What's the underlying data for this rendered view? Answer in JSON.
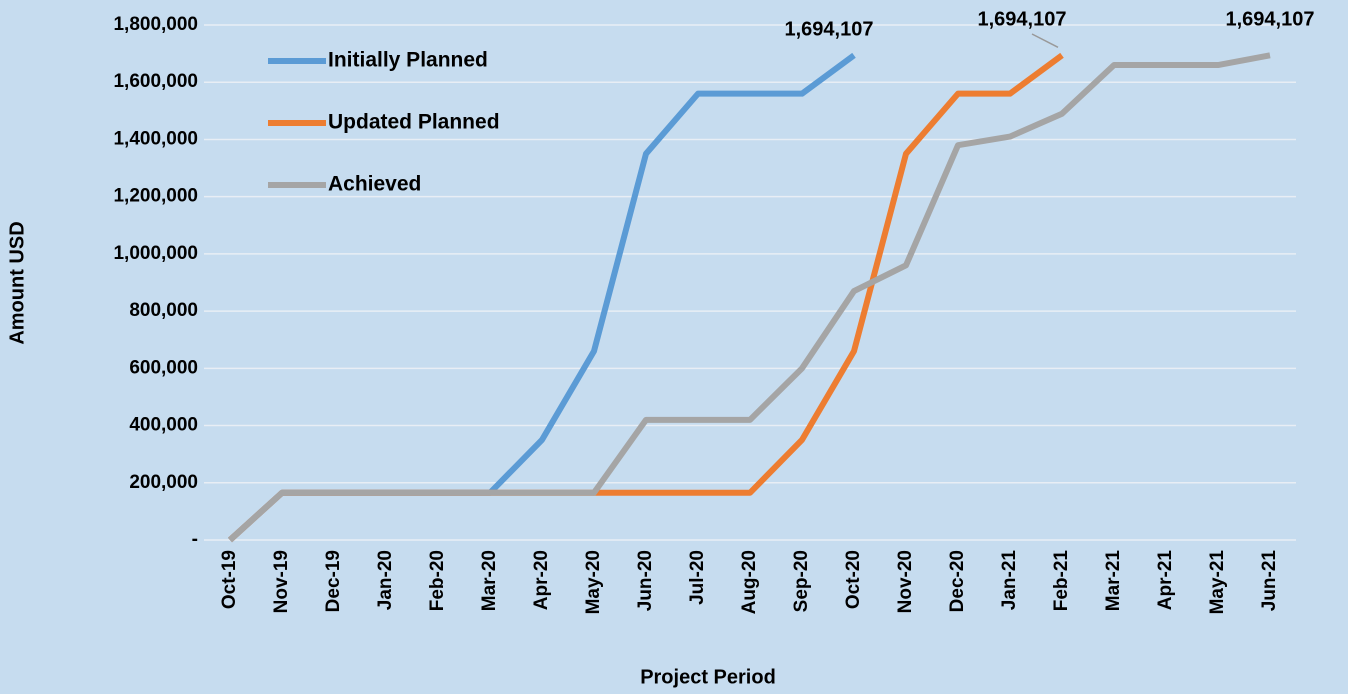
{
  "chart_data": {
    "type": "line",
    "x_label": "Project Period",
    "y_label": "Amount USD",
    "categories": [
      "Oct-19",
      "Nov-19",
      "Dec-19",
      "Jan-20",
      "Feb-20",
      "Mar-20",
      "Apr-20",
      "May-20",
      "Jun-20",
      "Jul-20",
      "Aug-20",
      "Sep-20",
      "Oct-20",
      "Nov-20",
      "Dec-20",
      "Jan-21",
      "Feb-21",
      "Mar-21",
      "Apr-21",
      "May-21",
      "Jun-21"
    ],
    "series": [
      {
        "name": "Initially Planned",
        "color": "#5b9bd5",
        "values": [
          0,
          165000,
          165000,
          165000,
          165000,
          165000,
          350000,
          660000,
          1350000,
          1560000,
          1560000,
          1560000,
          1694107,
          null,
          null,
          null,
          null,
          null,
          null,
          null,
          null
        ],
        "value_labels": [
          null,
          null,
          null,
          null,
          null,
          null,
          null,
          null,
          null,
          null,
          null,
          null,
          "1,694,107",
          null,
          null,
          null,
          null,
          null,
          null,
          null,
          null
        ]
      },
      {
        "name": "Updated Planned",
        "color": "#ed7d31",
        "values": [
          0,
          165000,
          165000,
          165000,
          165000,
          165000,
          165000,
          165000,
          165000,
          165000,
          165000,
          350000,
          660000,
          1350000,
          1560000,
          1560000,
          1694107,
          null,
          null,
          null,
          null
        ],
        "value_labels": [
          null,
          null,
          null,
          null,
          null,
          null,
          null,
          null,
          null,
          null,
          null,
          null,
          null,
          null,
          null,
          null,
          "1,694,107",
          null,
          null,
          null,
          null
        ]
      },
      {
        "name": "Achieved",
        "color": "#a5a5a5",
        "values": [
          0,
          165000,
          165000,
          165000,
          165000,
          165000,
          165000,
          165000,
          420000,
          420000,
          420000,
          600000,
          870000,
          960000,
          1380000,
          1410000,
          1490000,
          1660000,
          1660000,
          1660000,
          1694107
        ],
        "value_labels": [
          null,
          null,
          null,
          null,
          null,
          null,
          null,
          null,
          null,
          null,
          null,
          null,
          null,
          null,
          null,
          null,
          null,
          null,
          null,
          null,
          "1,694,107"
        ]
      }
    ],
    "ylim": [
      0,
      1800000
    ],
    "yticks": [
      {
        "value": 0,
        "label": "-"
      },
      {
        "value": 200000,
        "label": "200,000"
      },
      {
        "value": 400000,
        "label": "400,000"
      },
      {
        "value": 600000,
        "label": "600,000"
      },
      {
        "value": 800000,
        "label": "800,000"
      },
      {
        "value": 1000000,
        "label": "1,000,000"
      },
      {
        "value": 1200000,
        "label": "1,200,000"
      },
      {
        "value": 1400000,
        "label": "1,400,000"
      },
      {
        "value": 1600000,
        "label": "1,600,000"
      },
      {
        "value": 1800000,
        "label": "1,800,000"
      }
    ],
    "grid": true,
    "legend": "upper left"
  }
}
